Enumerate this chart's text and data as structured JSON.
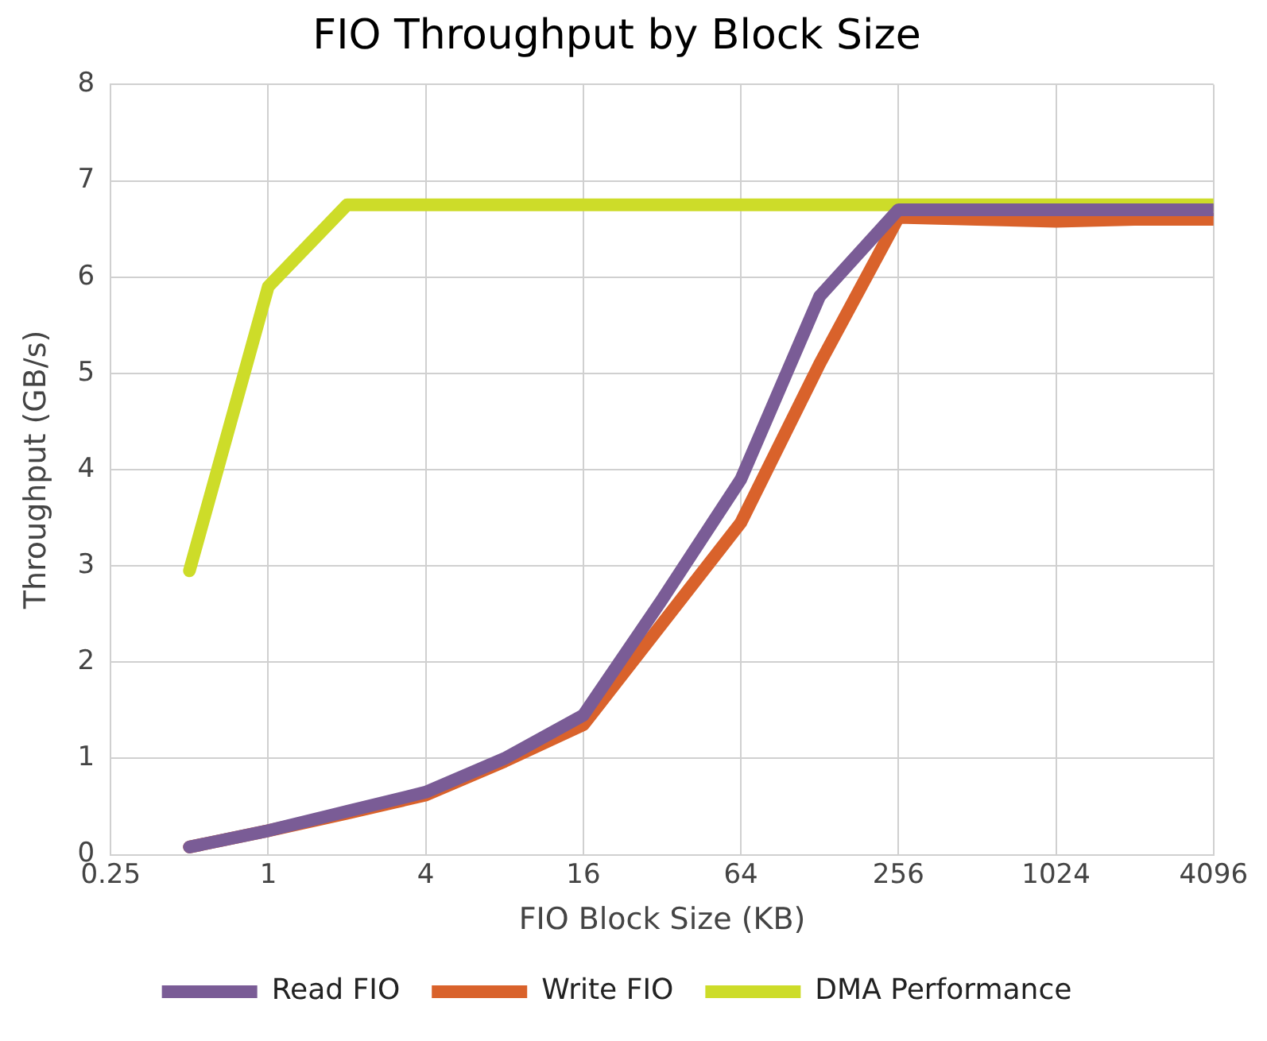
{
  "chart_data": {
    "type": "line",
    "title": "FIO Throughput by Block Size",
    "xlabel": "FIO Block Size (KB)",
    "ylabel": "Throughput (GB/s)",
    "log": "x",
    "xlim": [
      0.25,
      4096
    ],
    "xticks": [
      0.25,
      1,
      4,
      16,
      64,
      256,
      1024,
      4096
    ],
    "ylim": [
      0,
      8
    ],
    "yticks": [
      0,
      1,
      2,
      3,
      4,
      5,
      6,
      7,
      8
    ],
    "grid": true,
    "legend": "bottom",
    "marker": "none",
    "line_style": "solid",
    "x": [
      0.5,
      1,
      2,
      4,
      8,
      16,
      32,
      64,
      128,
      256,
      512,
      1024,
      2048,
      4096
    ],
    "series": [
      {
        "name": "Read FIO",
        "color": "#7a5c96",
        "values": [
          0.08,
          0.25,
          0.45,
          0.65,
          1.0,
          1.45,
          2.65,
          3.9,
          5.8,
          6.7,
          6.7,
          6.7,
          6.7,
          6.7
        ]
      },
      {
        "name": "Write FIO",
        "color": "#d9622b",
        "values": [
          0.08,
          0.25,
          0.43,
          0.62,
          0.97,
          1.35,
          2.4,
          3.45,
          5.1,
          6.62,
          6.6,
          6.58,
          6.6,
          6.6
        ]
      },
      {
        "name": "DMA Performance",
        "color": "#cddc29",
        "values": [
          2.95,
          5.9,
          6.75,
          6.75,
          6.75,
          6.75,
          6.75,
          6.75,
          6.75,
          6.75,
          6.75,
          6.75,
          6.75,
          6.75
        ]
      }
    ]
  }
}
